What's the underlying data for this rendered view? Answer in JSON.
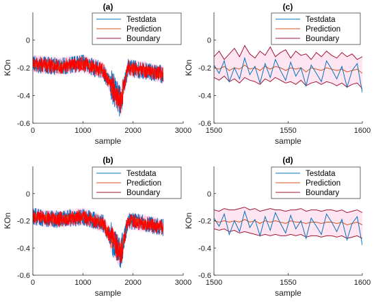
{
  "colors": {
    "testdata": "#0072BD",
    "prediction": "#D95319",
    "boundary": "#A2142F",
    "boundary_fill": "#ffb3d9",
    "dense_red": "#ff0000"
  },
  "chart_data": [
    {
      "type": "line",
      "panel": "(a)",
      "xlabel": "sample",
      "ylabel": "KOn",
      "xlim": [
        0,
        3000
      ],
      "ylim": [
        -0.6,
        0.2
      ],
      "xticks": [
        "0",
        "1000",
        "2000",
        "3000"
      ],
      "yticks": [
        "-0.6",
        "-0.4",
        "-0.2",
        "0"
      ],
      "legend": {
        "placement": "top-right",
        "entries": [
          "Testdata",
          "Prediction",
          "Boundary"
        ]
      },
      "series": [
        {
          "name": "Testdata",
          "segments": [
            [
              0,
              -0.17
            ],
            [
              500,
              -0.19
            ],
            [
              1000,
              -0.17
            ],
            [
              1400,
              -0.22
            ],
            [
              1600,
              -0.35
            ],
            [
              1750,
              -0.45
            ],
            [
              1900,
              -0.2
            ],
            [
              2250,
              -0.22
            ],
            [
              2600,
              -0.25
            ]
          ]
        },
        {
          "name": "Prediction",
          "segments": [
            [
              0,
              -0.17
            ],
            [
              500,
              -0.19
            ],
            [
              1000,
              -0.17
            ],
            [
              1400,
              -0.22
            ],
            [
              1600,
              -0.35
            ],
            [
              1750,
              -0.45
            ],
            [
              1900,
              -0.2
            ],
            [
              2250,
              -0.22
            ],
            [
              2600,
              -0.25
            ]
          ]
        },
        {
          "name": "Boundary",
          "segments": [
            [
              0,
              -0.17
            ],
            [
              500,
              -0.19
            ],
            [
              1000,
              -0.17
            ],
            [
              1400,
              -0.22
            ],
            [
              1600,
              -0.35
            ],
            [
              1750,
              -0.45
            ],
            [
              1900,
              -0.2
            ],
            [
              2250,
              -0.22
            ],
            [
              2600,
              -0.25
            ]
          ]
        }
      ]
    },
    {
      "type": "line",
      "panel": "(b)",
      "xlabel": "sample",
      "ylabel": "KOn",
      "xlim": [
        0,
        3000
      ],
      "ylim": [
        -0.6,
        0.2
      ],
      "xticks": [
        "0",
        "1000",
        "2000",
        "3000"
      ],
      "yticks": [
        "-0.6",
        "-0.4",
        "-0.2",
        "0"
      ],
      "legend": {
        "placement": "top-right",
        "entries": [
          "Testdata",
          "Prediction",
          "Boundary"
        ]
      },
      "series": [
        {
          "name": "Testdata",
          "segments": [
            [
              0,
              -0.17
            ],
            [
              500,
              -0.19
            ],
            [
              1000,
              -0.17
            ],
            [
              1400,
              -0.22
            ],
            [
              1600,
              -0.35
            ],
            [
              1750,
              -0.45
            ],
            [
              1900,
              -0.2
            ],
            [
              2250,
              -0.22
            ],
            [
              2600,
              -0.25
            ]
          ]
        },
        {
          "name": "Prediction",
          "segments": [
            [
              0,
              -0.17
            ],
            [
              500,
              -0.19
            ],
            [
              1000,
              -0.17
            ],
            [
              1400,
              -0.22
            ],
            [
              1600,
              -0.35
            ],
            [
              1750,
              -0.45
            ],
            [
              1900,
              -0.2
            ],
            [
              2250,
              -0.22
            ],
            [
              2600,
              -0.25
            ]
          ]
        },
        {
          "name": "Boundary",
          "segments": [
            [
              0,
              -0.17
            ],
            [
              500,
              -0.19
            ],
            [
              1000,
              -0.17
            ],
            [
              1400,
              -0.22
            ],
            [
              1600,
              -0.35
            ],
            [
              1750,
              -0.45
            ],
            [
              1900,
              -0.2
            ],
            [
              2250,
              -0.22
            ],
            [
              2600,
              -0.25
            ]
          ]
        }
      ]
    },
    {
      "type": "line",
      "panel": "(c)",
      "xlabel": "sample",
      "ylabel": "KOn",
      "xlim": [
        1500,
        1600
      ],
      "ylim": [
        -0.6,
        0.2
      ],
      "xticks": [
        "1500",
        "1550",
        "1600"
      ],
      "yticks": [
        "-0.6",
        "-0.4",
        "-0.2",
        "0"
      ],
      "legend": {
        "placement": "top-right",
        "entries": [
          "Testdata",
          "Prediction",
          "Boundary"
        ]
      },
      "series": [
        {
          "name": "Testdata",
          "values": [
            -0.18,
            -0.24,
            -0.15,
            -0.3,
            -0.2,
            -0.28,
            -0.13,
            -0.25,
            -0.19,
            -0.31,
            -0.17,
            -0.27,
            -0.14,
            -0.22,
            -0.29,
            -0.16,
            -0.26,
            -0.2,
            -0.33,
            -0.18,
            -0.24,
            -0.3,
            -0.15,
            -0.21,
            -0.28,
            -0.19,
            -0.34,
            -0.22,
            -0.17,
            -0.38
          ]
        },
        {
          "name": "Prediction",
          "values": [
            -0.2,
            -0.21,
            -0.19,
            -0.22,
            -0.2,
            -0.21,
            -0.18,
            -0.21,
            -0.2,
            -0.22,
            -0.19,
            -0.21,
            -0.19,
            -0.2,
            -0.22,
            -0.2,
            -0.21,
            -0.2,
            -0.23,
            -0.2,
            -0.21,
            -0.22,
            -0.2,
            -0.21,
            -0.22,
            -0.21,
            -0.23,
            -0.22,
            -0.21,
            -0.24
          ]
        },
        {
          "name": "Boundary",
          "upper": [
            -0.12,
            -0.08,
            -0.14,
            -0.1,
            -0.06,
            -0.12,
            -0.04,
            -0.1,
            -0.13,
            -0.08,
            -0.11,
            -0.05,
            -0.12,
            -0.09,
            -0.07,
            -0.13,
            -0.08,
            -0.11,
            -0.1,
            -0.14,
            -0.09,
            -0.12,
            -0.08,
            -0.11,
            -0.13,
            -0.09,
            -0.12,
            -0.1,
            -0.14,
            -0.12
          ],
          "lower": [
            -0.27,
            -0.29,
            -0.26,
            -0.3,
            -0.28,
            -0.31,
            -0.27,
            -0.29,
            -0.3,
            -0.32,
            -0.28,
            -0.3,
            -0.27,
            -0.29,
            -0.31,
            -0.3,
            -0.32,
            -0.29,
            -0.33,
            -0.31,
            -0.3,
            -0.32,
            -0.3,
            -0.31,
            -0.33,
            -0.31,
            -0.34,
            -0.32,
            -0.31,
            -0.35
          ]
        }
      ]
    },
    {
      "type": "line",
      "panel": "(d)",
      "xlabel": "sample",
      "ylabel": "KOn",
      "xlim": [
        1500,
        1600
      ],
      "ylim": [
        -0.6,
        0.2
      ],
      "xticks": [
        "1500",
        "1550",
        "1600"
      ],
      "yticks": [
        "-0.6",
        "-0.4",
        "-0.2",
        "0"
      ],
      "legend": {
        "placement": "top-right",
        "entries": [
          "Testdata",
          "Prediction",
          "Boundary"
        ]
      },
      "series": [
        {
          "name": "Testdata",
          "values": [
            -0.18,
            -0.24,
            -0.15,
            -0.3,
            -0.2,
            -0.28,
            -0.13,
            -0.25,
            -0.19,
            -0.31,
            -0.17,
            -0.27,
            -0.14,
            -0.22,
            -0.29,
            -0.16,
            -0.26,
            -0.2,
            -0.33,
            -0.18,
            -0.24,
            -0.3,
            -0.15,
            -0.21,
            -0.28,
            -0.19,
            -0.34,
            -0.22,
            -0.17,
            -0.38
          ]
        },
        {
          "name": "Prediction",
          "values": [
            -0.2,
            -0.21,
            -0.2,
            -0.21,
            -0.2,
            -0.21,
            -0.19,
            -0.21,
            -0.2,
            -0.22,
            -0.2,
            -0.21,
            -0.2,
            -0.21,
            -0.22,
            -0.2,
            -0.21,
            -0.21,
            -0.22,
            -0.21,
            -0.21,
            -0.22,
            -0.21,
            -0.21,
            -0.22,
            -0.21,
            -0.23,
            -0.22,
            -0.21,
            -0.23
          ]
        },
        {
          "name": "Boundary",
          "upper": [
            -0.12,
            -0.13,
            -0.11,
            -0.12,
            -0.12,
            -0.11,
            -0.1,
            -0.12,
            -0.11,
            -0.13,
            -0.12,
            -0.11,
            -0.12,
            -0.12,
            -0.13,
            -0.12,
            -0.12,
            -0.11,
            -0.13,
            -0.12,
            -0.12,
            -0.13,
            -0.12,
            -0.12,
            -0.13,
            -0.12,
            -0.14,
            -0.13,
            -0.12,
            -0.14
          ],
          "lower": [
            -0.26,
            -0.27,
            -0.26,
            -0.28,
            -0.27,
            -0.29,
            -0.28,
            -0.29,
            -0.3,
            -0.31,
            -0.3,
            -0.31,
            -0.3,
            -0.31,
            -0.31,
            -0.3,
            -0.31,
            -0.3,
            -0.32,
            -0.31,
            -0.31,
            -0.32,
            -0.31,
            -0.31,
            -0.32,
            -0.31,
            -0.33,
            -0.32,
            -0.31,
            -0.33
          ]
        }
      ]
    }
  ]
}
